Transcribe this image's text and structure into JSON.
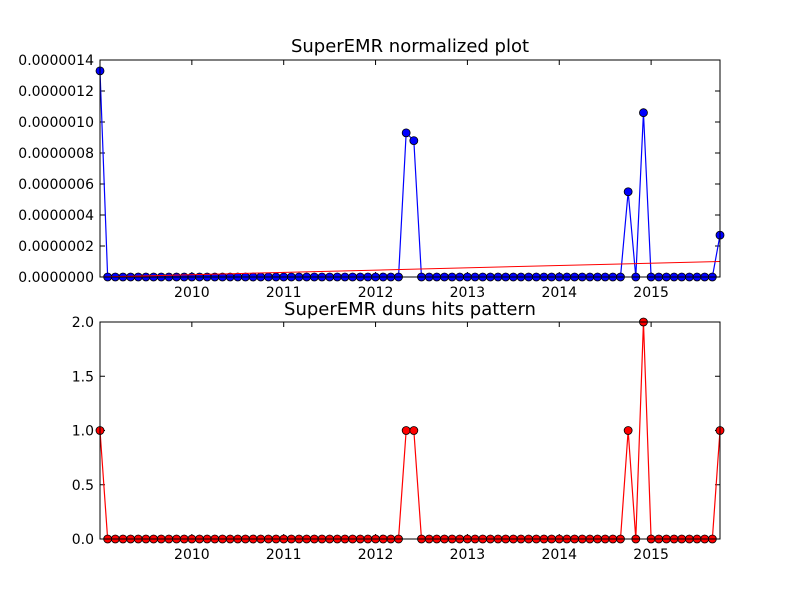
{
  "chart_data": [
    {
      "type": "line",
      "title": "SuperEMR normalized plot",
      "xlabel": "",
      "ylabel": "",
      "xlim": [
        "2009-01",
        "2015-10"
      ],
      "ylim": [
        0,
        1.4e-06
      ],
      "x_ticks": [
        "2010",
        "2011",
        "2012",
        "2013",
        "2014",
        "2015"
      ],
      "y_ticks": [
        "0.0000000",
        "0.0000002",
        "0.0000004",
        "0.0000006",
        "0.0000008",
        "0.0000010",
        "0.0000012",
        "0.0000014"
      ],
      "x": [
        "2009-01",
        "2009-02",
        "2009-03",
        "2009-04",
        "2009-05",
        "2009-06",
        "2009-07",
        "2009-08",
        "2009-09",
        "2009-10",
        "2009-11",
        "2009-12",
        "2010-01",
        "2010-02",
        "2010-03",
        "2010-04",
        "2010-05",
        "2010-06",
        "2010-07",
        "2010-08",
        "2010-09",
        "2010-10",
        "2010-11",
        "2010-12",
        "2011-01",
        "2011-02",
        "2011-03",
        "2011-04",
        "2011-05",
        "2011-06",
        "2011-07",
        "2011-08",
        "2011-09",
        "2011-10",
        "2011-11",
        "2011-12",
        "2012-01",
        "2012-02",
        "2012-03",
        "2012-04",
        "2012-05",
        "2012-06",
        "2012-07",
        "2012-08",
        "2012-09",
        "2012-10",
        "2012-11",
        "2012-12",
        "2013-01",
        "2013-02",
        "2013-03",
        "2013-04",
        "2013-05",
        "2013-06",
        "2013-07",
        "2013-08",
        "2013-09",
        "2013-10",
        "2013-11",
        "2013-12",
        "2014-01",
        "2014-02",
        "2014-03",
        "2014-04",
        "2014-05",
        "2014-06",
        "2014-07",
        "2014-08",
        "2014-09",
        "2014-10",
        "2014-11",
        "2014-12",
        "2015-01",
        "2015-02",
        "2015-03",
        "2015-04",
        "2015-05",
        "2015-06",
        "2015-07",
        "2015-08",
        "2015-09",
        "2015-10"
      ],
      "series": [
        {
          "color": "#0000ff",
          "marker": "circle",
          "values": [
            1.33e-06,
            0,
            0,
            0,
            0,
            0,
            0,
            0,
            0,
            0,
            0,
            0,
            0,
            0,
            0,
            0,
            0,
            0,
            0,
            0,
            0,
            0,
            0,
            0,
            0,
            0,
            0,
            0,
            0,
            0,
            0,
            0,
            0,
            0,
            0,
            0,
            0,
            0,
            0,
            0,
            9.3e-07,
            8.8e-07,
            0,
            0,
            0,
            0,
            0,
            0,
            0,
            0,
            0,
            0,
            0,
            0,
            0,
            0,
            0,
            0,
            0,
            0,
            0,
            0,
            0,
            0,
            0,
            0,
            0,
            0,
            0,
            5.5e-07,
            0,
            1.06e-06,
            0,
            0,
            0,
            0,
            0,
            0,
            0,
            0,
            0,
            2.7e-07
          ]
        },
        {
          "color": "#ff0000",
          "marker": "none",
          "kind": "trend",
          "start": 0.0,
          "end": 1e-07
        }
      ],
      "grid": false
    },
    {
      "type": "line",
      "title": "SuperEMR duns hits pattern",
      "xlabel": "",
      "ylabel": "",
      "xlim": [
        "2009-01",
        "2015-10"
      ],
      "ylim": [
        0,
        2.0
      ],
      "x_ticks": [
        "2010",
        "2011",
        "2012",
        "2013",
        "2014",
        "2015"
      ],
      "y_ticks": [
        "0.0",
        "0.5",
        "1.0",
        "1.5",
        "2.0"
      ],
      "x": [
        "2009-01",
        "2009-02",
        "2009-03",
        "2009-04",
        "2009-05",
        "2009-06",
        "2009-07",
        "2009-08",
        "2009-09",
        "2009-10",
        "2009-11",
        "2009-12",
        "2010-01",
        "2010-02",
        "2010-03",
        "2010-04",
        "2010-05",
        "2010-06",
        "2010-07",
        "2010-08",
        "2010-09",
        "2010-10",
        "2010-11",
        "2010-12",
        "2011-01",
        "2011-02",
        "2011-03",
        "2011-04",
        "2011-05",
        "2011-06",
        "2011-07",
        "2011-08",
        "2011-09",
        "2011-10",
        "2011-11",
        "2011-12",
        "2012-01",
        "2012-02",
        "2012-03",
        "2012-04",
        "2012-05",
        "2012-06",
        "2012-07",
        "2012-08",
        "2012-09",
        "2012-10",
        "2012-11",
        "2012-12",
        "2013-01",
        "2013-02",
        "2013-03",
        "2013-04",
        "2013-05",
        "2013-06",
        "2013-07",
        "2013-08",
        "2013-09",
        "2013-10",
        "2013-11",
        "2013-12",
        "2014-01",
        "2014-02",
        "2014-03",
        "2014-04",
        "2014-05",
        "2014-06",
        "2014-07",
        "2014-08",
        "2014-09",
        "2014-10",
        "2014-11",
        "2014-12",
        "2015-01",
        "2015-02",
        "2015-03",
        "2015-04",
        "2015-05",
        "2015-06",
        "2015-07",
        "2015-08",
        "2015-09",
        "2015-10"
      ],
      "series": [
        {
          "color": "#ff0000",
          "marker": "circle",
          "values": [
            1,
            0,
            0,
            0,
            0,
            0,
            0,
            0,
            0,
            0,
            0,
            0,
            0,
            0,
            0,
            0,
            0,
            0,
            0,
            0,
            0,
            0,
            0,
            0,
            0,
            0,
            0,
            0,
            0,
            0,
            0,
            0,
            0,
            0,
            0,
            0,
            0,
            0,
            0,
            0,
            1,
            1,
            0,
            0,
            0,
            0,
            0,
            0,
            0,
            0,
            0,
            0,
            0,
            0,
            0,
            0,
            0,
            0,
            0,
            0,
            0,
            0,
            0,
            0,
            0,
            0,
            0,
            0,
            0,
            1,
            0,
            2,
            0,
            0,
            0,
            0,
            0,
            0,
            0,
            0,
            0,
            1
          ]
        }
      ],
      "grid": false
    }
  ]
}
